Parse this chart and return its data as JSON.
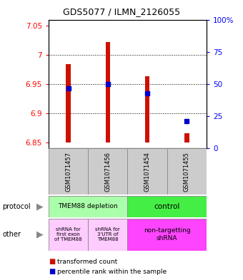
{
  "title": "GDS5077 / ILMN_2126055",
  "samples": [
    "GSM1071457",
    "GSM1071456",
    "GSM1071454",
    "GSM1071455"
  ],
  "bar_bottoms": [
    6.85,
    6.85,
    6.85,
    6.85
  ],
  "bar_tops": [
    6.984,
    7.022,
    6.963,
    6.866
  ],
  "bar_color": "#cc1100",
  "blue_values": [
    6.942,
    6.95,
    6.934,
    6.887
  ],
  "blue_color": "#0000cc",
  "ylim_left": [
    6.84,
    7.06
  ],
  "ylim_right": [
    0,
    100
  ],
  "yticks_left": [
    6.85,
    6.9,
    6.95,
    7.0,
    7.05
  ],
  "yticks_right": [
    0,
    25,
    50,
    75,
    100
  ],
  "ytick_labels_left": [
    "6.85",
    "6.9",
    "6.95",
    "7",
    "7.05"
  ],
  "ytick_labels_right": [
    "0",
    "25",
    "50",
    "75",
    "100%"
  ],
  "grid_values": [
    6.9,
    6.95,
    7.0
  ],
  "protocol_labels": [
    "TMEM88 depletion",
    "control"
  ],
  "protocol_color_depletion": "#aaffaa",
  "protocol_color_control": "#44ee44",
  "other_label_0": "shRNA for\nfirst exon\nof TMEM88",
  "other_label_1": "shRNA for\n3'UTR of\nTMEM88",
  "other_label_2": "non-targetting\nshRNA",
  "other_color_light": "#ffccff",
  "other_color_bright": "#ff44ff",
  "legend_red_label": "transformed count",
  "legend_blue_label": "percentile rank within the sample",
  "bar_width": 0.12
}
